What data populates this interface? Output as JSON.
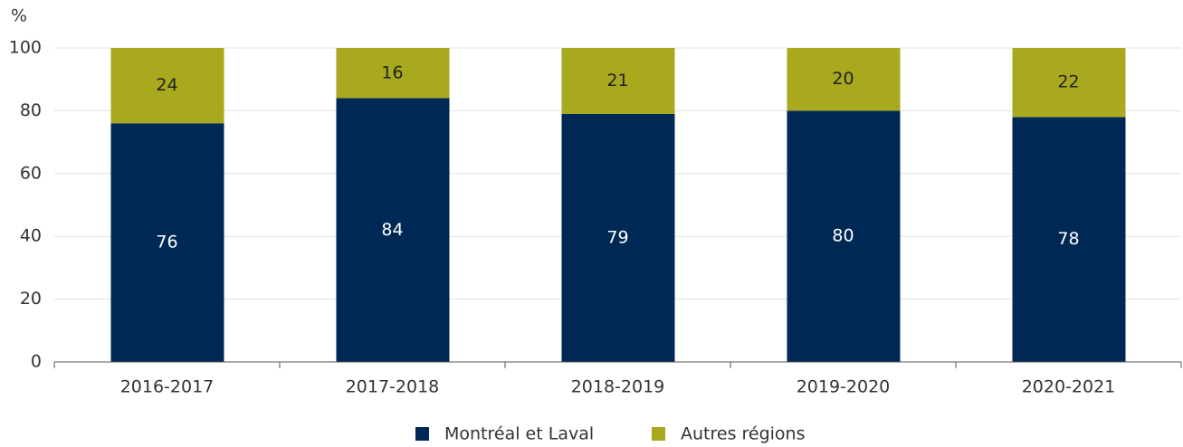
{
  "chart_data": {
    "type": "stacked_bar",
    "y_label": "%",
    "categories": [
      "2016-2017",
      "2017-2018",
      "2018-2019",
      "2019-2020",
      "2020-2021"
    ],
    "series": [
      {
        "name": "Montréal et Laval",
        "color": "#002855",
        "label_color": "#ffffff",
        "values": [
          76,
          84,
          79,
          80,
          78
        ]
      },
      {
        "name": "Autres régions",
        "color": "#a8a91e",
        "label_color": "#222222",
        "values": [
          24,
          16,
          21,
          20,
          22
        ]
      }
    ],
    "ylim": [
      0,
      100
    ],
    "yticks": [
      0,
      20,
      40,
      60,
      80,
      100
    ],
    "grid": true,
    "legend": "bottom"
  }
}
